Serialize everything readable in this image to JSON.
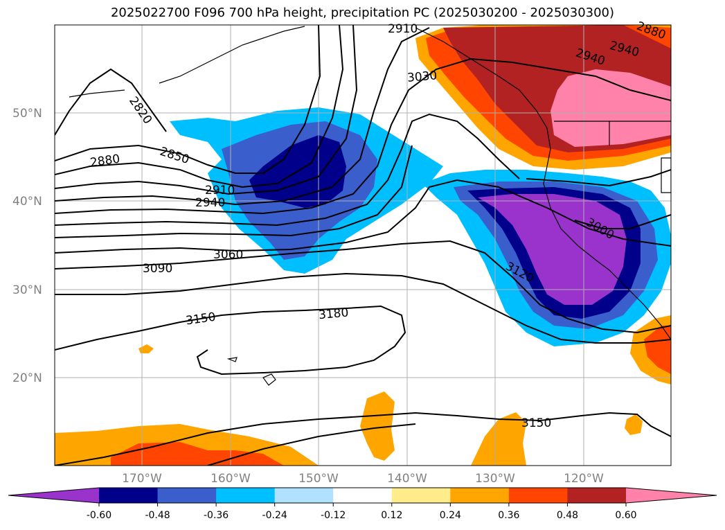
{
  "title": "2025022700 F096 700 hPa height, precipitation PC (2025030200 - 2025030300)",
  "lat_labels": [
    "50°N",
    "40°N",
    "30°N",
    "20°N"
  ],
  "lon_labels": [
    "170°W",
    "160°W",
    "150°W",
    "140°W",
    "130°W",
    "120°W"
  ],
  "contour_labels": [
    "2820",
    "2850",
    "2880",
    "2910",
    "2940",
    "2910",
    "2940",
    "2880",
    "3030",
    "3060",
    "3090",
    "3150",
    "3180",
    "3000",
    "3120",
    "3150"
  ],
  "colorbar": {
    "ticks": [
      "-0.60",
      "-0.48",
      "-0.36",
      "-0.24",
      "-0.12",
      "0.12",
      "0.24",
      "0.36",
      "0.48",
      "0.60"
    ],
    "colors": [
      "#9933cc",
      "#00008b",
      "#3a5fcd",
      "#00bfff",
      "#b0e2ff",
      "#ffffff",
      "#ffec8b",
      "#ffa500",
      "#ff4500",
      "#b22222",
      "#ff82ab"
    ]
  },
  "chart_data": {
    "type": "heatmap",
    "title": "2025022700 F096 700 hPa height, precipitation PC (2025030200 - 2025030300)",
    "field": "700 hPa height contours with precipitation PC shading",
    "contour_values": [
      2820,
      2850,
      2880,
      2910,
      2940,
      3000,
      3030,
      3060,
      3090,
      3120,
      3150,
      3180
    ],
    "lon_range": [
      "180°W",
      "110°W"
    ],
    "lat_range": [
      "10°N",
      "60°N"
    ],
    "grid": true,
    "legend": "bottom colorbar",
    "colorbar_ticks": [
      -0.6,
      -0.48,
      -0.36,
      -0.24,
      -0.12,
      0.12,
      0.24,
      0.36,
      0.48,
      0.6
    ]
  }
}
